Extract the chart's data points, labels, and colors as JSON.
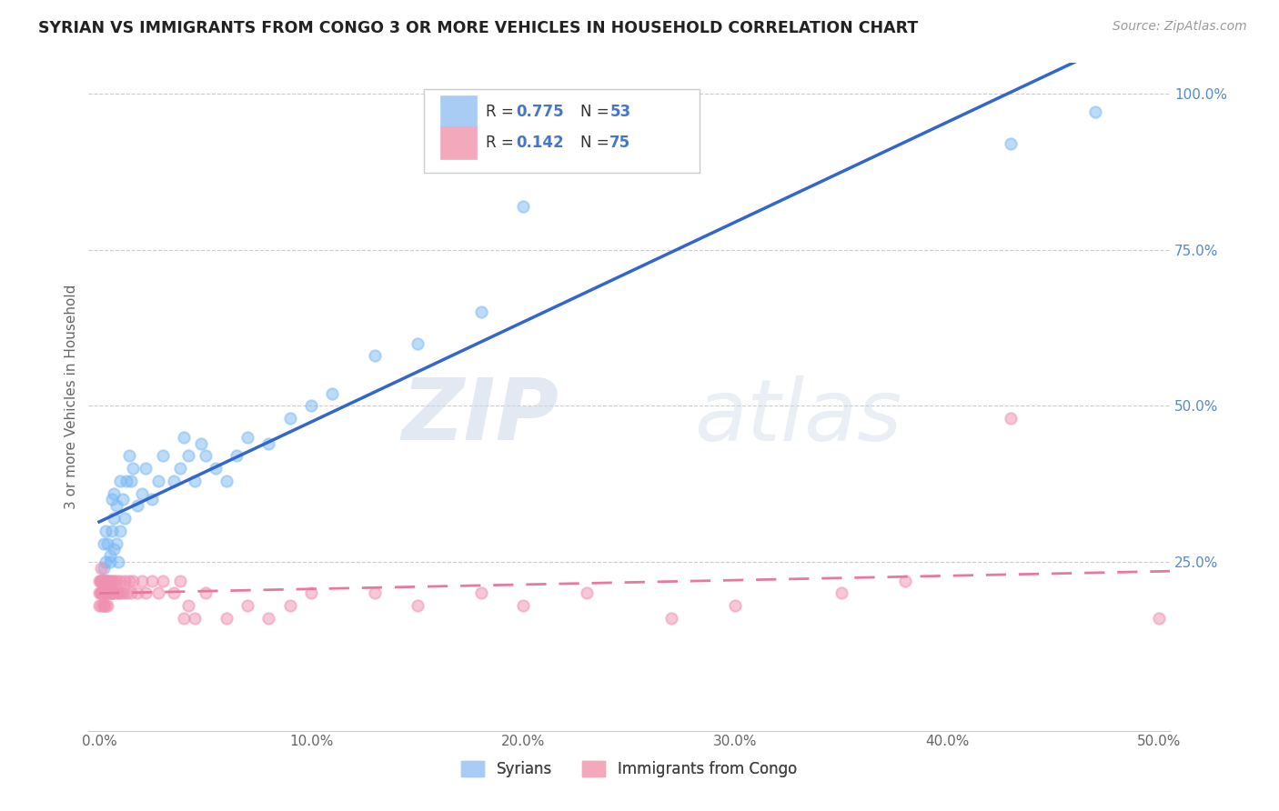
{
  "title": "SYRIAN VS IMMIGRANTS FROM CONGO 3 OR MORE VEHICLES IN HOUSEHOLD CORRELATION CHART",
  "source": "Source: ZipAtlas.com",
  "ylabel": "3 or more Vehicles in Household",
  "xlim": [
    -0.005,
    0.505
  ],
  "ylim": [
    -0.02,
    1.05
  ],
  "xtick_labels": [
    "0.0%",
    "10.0%",
    "20.0%",
    "30.0%",
    "40.0%",
    "50.0%"
  ],
  "xtick_vals": [
    0.0,
    0.1,
    0.2,
    0.3,
    0.4,
    0.5
  ],
  "ytick_labels": [
    "25.0%",
    "50.0%",
    "75.0%",
    "100.0%"
  ],
  "ytick_vals": [
    0.25,
    0.5,
    0.75,
    1.0
  ],
  "watermark_zip": "ZIP",
  "watermark_atlas": "atlas",
  "syrians_color": "#7ab8f5",
  "congo_color": "#f090b0",
  "syrians_line_color": "#3366cc",
  "congo_line_color": "#e878a0",
  "background_color": "#ffffff",
  "grid_color": "#cccccc",
  "R_syrian": 0.775,
  "N_syrian": 53,
  "R_congo": 0.142,
  "N_congo": 75,
  "syrians_x": [
    0.001,
    0.002,
    0.002,
    0.003,
    0.003,
    0.003,
    0.004,
    0.004,
    0.005,
    0.005,
    0.006,
    0.006,
    0.007,
    0.007,
    0.007,
    0.008,
    0.008,
    0.009,
    0.01,
    0.01,
    0.011,
    0.012,
    0.013,
    0.014,
    0.015,
    0.016,
    0.018,
    0.02,
    0.022,
    0.025,
    0.028,
    0.03,
    0.035,
    0.038,
    0.04,
    0.042,
    0.045,
    0.048,
    0.05,
    0.055,
    0.06,
    0.065,
    0.07,
    0.08,
    0.09,
    0.1,
    0.11,
    0.13,
    0.15,
    0.18,
    0.2,
    0.43,
    0.47
  ],
  "syrians_y": [
    0.22,
    0.28,
    0.24,
    0.2,
    0.25,
    0.3,
    0.22,
    0.28,
    0.26,
    0.25,
    0.3,
    0.35,
    0.27,
    0.32,
    0.36,
    0.28,
    0.34,
    0.25,
    0.3,
    0.38,
    0.35,
    0.32,
    0.38,
    0.42,
    0.38,
    0.4,
    0.34,
    0.36,
    0.4,
    0.35,
    0.38,
    0.42,
    0.38,
    0.4,
    0.45,
    0.42,
    0.38,
    0.44,
    0.42,
    0.4,
    0.38,
    0.42,
    0.45,
    0.44,
    0.48,
    0.5,
    0.52,
    0.58,
    0.6,
    0.65,
    0.82,
    0.92,
    0.97
  ],
  "congo_x": [
    0.0,
    0.0,
    0.0,
    0.001,
    0.001,
    0.001,
    0.001,
    0.001,
    0.001,
    0.001,
    0.001,
    0.002,
    0.002,
    0.002,
    0.002,
    0.002,
    0.002,
    0.002,
    0.002,
    0.003,
    0.003,
    0.003,
    0.003,
    0.003,
    0.004,
    0.004,
    0.004,
    0.004,
    0.005,
    0.005,
    0.005,
    0.006,
    0.006,
    0.006,
    0.007,
    0.007,
    0.008,
    0.008,
    0.009,
    0.01,
    0.01,
    0.011,
    0.012,
    0.013,
    0.014,
    0.015,
    0.016,
    0.018,
    0.02,
    0.022,
    0.025,
    0.028,
    0.03,
    0.035,
    0.038,
    0.04,
    0.042,
    0.045,
    0.05,
    0.06,
    0.07,
    0.08,
    0.09,
    0.1,
    0.13,
    0.15,
    0.18,
    0.2,
    0.23,
    0.27,
    0.3,
    0.35,
    0.38,
    0.43,
    0.5
  ],
  "congo_y": [
    0.2,
    0.18,
    0.22,
    0.22,
    0.2,
    0.18,
    0.22,
    0.24,
    0.2,
    0.22,
    0.2,
    0.18,
    0.22,
    0.2,
    0.2,
    0.22,
    0.2,
    0.18,
    0.2,
    0.22,
    0.2,
    0.18,
    0.2,
    0.22,
    0.2,
    0.18,
    0.2,
    0.22,
    0.22,
    0.2,
    0.2,
    0.2,
    0.22,
    0.2,
    0.2,
    0.22,
    0.2,
    0.22,
    0.2,
    0.22,
    0.2,
    0.2,
    0.22,
    0.2,
    0.22,
    0.2,
    0.22,
    0.2,
    0.22,
    0.2,
    0.22,
    0.2,
    0.22,
    0.2,
    0.22,
    0.16,
    0.18,
    0.16,
    0.2,
    0.16,
    0.18,
    0.16,
    0.18,
    0.2,
    0.2,
    0.18,
    0.2,
    0.18,
    0.2,
    0.16,
    0.18,
    0.2,
    0.22,
    0.48,
    0.16
  ]
}
